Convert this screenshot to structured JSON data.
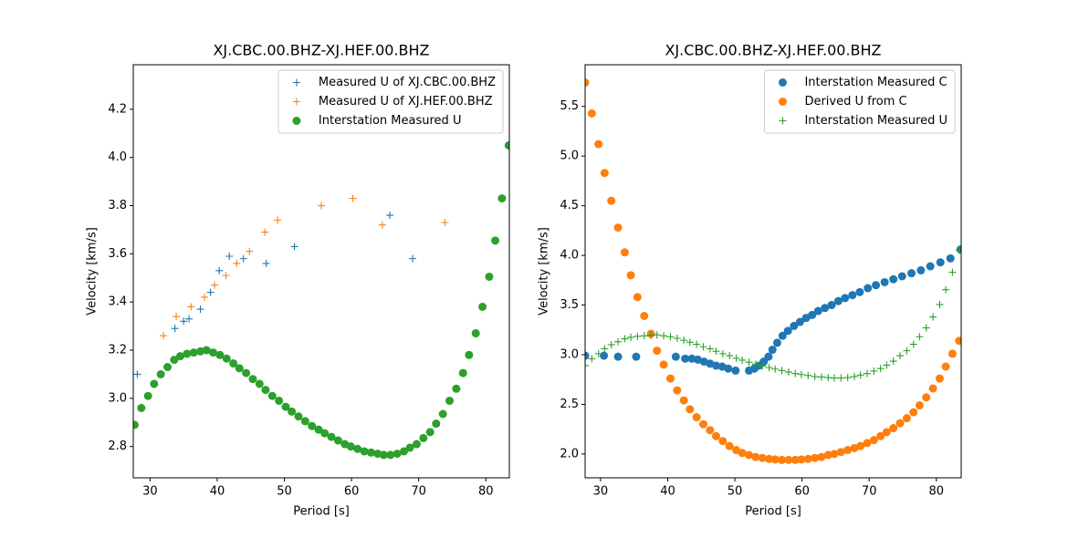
{
  "chart_data": [
    {
      "type": "scatter",
      "title": "XJ.CBC.00.BHZ-XJ.HEF.00.BHZ",
      "xlabel": "Period [s]",
      "ylabel": "Velocity [km/s]",
      "xlim": [
        27.5,
        83.5
      ],
      "ylim": [
        2.67,
        4.385
      ],
      "xticks": [
        30,
        40,
        50,
        60,
        70,
        80
      ],
      "yticks": [
        2.8,
        {
          "value": 3,
          "label": "3.0"
        },
        3.2,
        3.4,
        3.6,
        3.8,
        {
          "value": 4,
          "label": "4.0"
        },
        4.2
      ],
      "legend": "upper right",
      "series": [
        {
          "name": "Measured U of XJ.CBC.00.BHZ",
          "color": "#1f77b4",
          "marker": "+",
          "x": [
            28.1,
            33.7,
            35.0,
            35.8,
            37.5,
            39.0,
            40.3,
            41.8,
            43.9,
            47.3,
            51.5,
            65.7,
            69.1
          ],
          "values": [
            3.1,
            3.29,
            3.32,
            3.33,
            3.37,
            3.44,
            3.53,
            3.59,
            3.58,
            3.56,
            3.63,
            3.76,
            3.58
          ]
        },
        {
          "name": "Measured U of XJ.HEF.00.BHZ",
          "color": "#ff7f0e",
          "marker": "+",
          "x": [
            32.0,
            33.9,
            36.1,
            38.1,
            39.6,
            41.3,
            42.9,
            44.8,
            47.1,
            49.0,
            55.5,
            60.2,
            64.6,
            73.9
          ],
          "values": [
            3.26,
            3.34,
            3.38,
            3.42,
            3.47,
            3.51,
            3.56,
            3.61,
            3.69,
            3.74,
            3.8,
            3.83,
            3.72,
            3.73
          ]
        },
        {
          "name": "Interstation Measured U",
          "color": "#2ca02c",
          "marker": "o",
          "x": [
            27.7,
            28.7,
            29.7,
            30.6,
            31.6,
            32.6,
            33.6,
            34.5,
            35.5,
            36.5,
            37.5,
            38.4,
            39.4,
            40.4,
            41.4,
            42.4,
            43.3,
            44.3,
            45.3,
            46.3,
            47.2,
            48.2,
            49.2,
            50.2,
            51.1,
            52.1,
            53.1,
            54.1,
            55.1,
            56.0,
            57.0,
            58.0,
            59.0,
            59.9,
            60.9,
            61.9,
            62.9,
            63.9,
            64.8,
            65.8,
            66.8,
            67.8,
            68.7,
            69.7,
            70.7,
            71.7,
            72.6,
            73.6,
            74.6,
            75.6,
            76.6,
            77.5,
            78.5,
            79.5,
            80.5,
            81.4,
            82.4,
            83.4
          ],
          "values": [
            2.89,
            2.96,
            3.01,
            3.06,
            3.1,
            3.13,
            3.16,
            3.175,
            3.185,
            3.19,
            3.195,
            3.2,
            3.19,
            3.18,
            3.165,
            3.145,
            3.125,
            3.105,
            3.08,
            3.06,
            3.035,
            3.01,
            2.99,
            2.965,
            2.945,
            2.925,
            2.905,
            2.885,
            2.87,
            2.855,
            2.84,
            2.825,
            2.81,
            2.8,
            2.79,
            2.78,
            2.775,
            2.77,
            2.765,
            2.765,
            2.77,
            2.78,
            2.795,
            2.81,
            2.835,
            2.86,
            2.895,
            2.935,
            2.99,
            3.04,
            3.105,
            3.18,
            3.27,
            3.38,
            3.505,
            3.655,
            3.83,
            4.05
          ]
        }
      ]
    },
    {
      "type": "scatter",
      "title": "XJ.CBC.00.BHZ-XJ.HEF.00.BHZ",
      "xlabel": "Period [s]",
      "ylabel": "Velocity [km/s]",
      "xlim": [
        27.7,
        83.7
      ],
      "ylim": [
        1.76,
        5.92
      ],
      "xticks": [
        30,
        40,
        50,
        60,
        70,
        80
      ],
      "yticks": [
        {
          "value": 2,
          "label": "2.0"
        },
        2.5,
        {
          "value": 3,
          "label": "3.0"
        },
        3.5,
        {
          "value": 4,
          "label": "4.0"
        },
        4.5,
        {
          "value": 5,
          "label": "5.0"
        },
        5.5
      ],
      "legend": "upper right",
      "series": [
        {
          "name": "Interstation Measured C",
          "color": "#1f77b4",
          "marker": "o",
          "x": [
            27.7,
            30.5,
            32.6,
            35.3,
            41.2,
            42.6,
            43.6,
            44.5,
            45.4,
            46.3,
            47.2,
            48.1,
            49.0,
            50.1,
            52.1,
            52.9,
            53.6,
            54.3,
            55.0,
            55.6,
            56.3,
            57.1,
            57.9,
            58.8,
            59.7,
            60.6,
            61.5,
            62.4,
            63.4,
            64.4,
            65.4,
            66.4,
            67.5,
            68.6,
            69.8,
            71.0,
            72.3,
            73.6,
            74.9,
            76.3,
            77.7,
            79.1,
            80.6,
            82.1,
            83.6
          ],
          "values": [
            2.99,
            2.99,
            2.98,
            2.98,
            2.98,
            2.96,
            2.96,
            2.95,
            2.93,
            2.91,
            2.89,
            2.88,
            2.86,
            2.84,
            2.84,
            2.86,
            2.89,
            2.93,
            2.98,
            3.05,
            3.12,
            3.19,
            3.24,
            3.29,
            3.33,
            3.37,
            3.4,
            3.44,
            3.47,
            3.5,
            3.54,
            3.57,
            3.6,
            3.63,
            3.67,
            3.7,
            3.73,
            3.76,
            3.79,
            3.82,
            3.85,
            3.89,
            3.93,
            3.97,
            4.06
          ]
        },
        {
          "name": "Derived U from C",
          "color": "#ff7f0e",
          "marker": "o",
          "x": [
            27.7,
            28.7,
            29.7,
            30.6,
            31.6,
            32.6,
            33.6,
            34.5,
            35.5,
            36.5,
            37.5,
            38.4,
            39.4,
            40.4,
            41.4,
            42.4,
            43.3,
            44.3,
            45.3,
            46.3,
            47.2,
            48.2,
            49.2,
            50.2,
            51.1,
            52.1,
            53.1,
            54.1,
            55.1,
            56.0,
            57.0,
            58.0,
            59.0,
            59.9,
            60.9,
            61.9,
            62.9,
            63.9,
            64.8,
            65.8,
            66.8,
            67.8,
            68.7,
            69.7,
            70.7,
            71.7,
            72.6,
            73.6,
            74.6,
            75.6,
            76.6,
            77.5,
            78.5,
            79.5,
            80.5,
            81.4,
            82.4,
            83.4
          ],
          "values": [
            5.74,
            5.43,
            5.12,
            4.83,
            4.55,
            4.28,
            4.03,
            3.8,
            3.58,
            3.39,
            3.21,
            3.04,
            2.9,
            2.76,
            2.64,
            2.54,
            2.45,
            2.37,
            2.3,
            2.24,
            2.18,
            2.13,
            2.08,
            2.04,
            2.01,
            1.99,
            1.97,
            1.96,
            1.95,
            1.945,
            1.94,
            1.94,
            1.94,
            1.945,
            1.95,
            1.96,
            1.97,
            1.99,
            2.0,
            2.02,
            2.04,
            2.06,
            2.08,
            2.11,
            2.14,
            2.18,
            2.22,
            2.26,
            2.31,
            2.36,
            2.42,
            2.49,
            2.57,
            2.66,
            2.76,
            2.88,
            3.01,
            3.14
          ]
        },
        {
          "name": "Interstation Measured U",
          "color": "#2ca02c",
          "marker": "+",
          "x": [
            27.7,
            28.7,
            29.7,
            30.6,
            31.6,
            32.6,
            33.6,
            34.5,
            35.5,
            36.5,
            37.5,
            38.4,
            39.4,
            40.4,
            41.4,
            42.4,
            43.3,
            44.3,
            45.3,
            46.3,
            47.2,
            48.2,
            49.2,
            50.2,
            51.1,
            52.1,
            53.1,
            54.1,
            55.1,
            56.0,
            57.0,
            58.0,
            59.0,
            59.9,
            60.9,
            61.9,
            62.9,
            63.9,
            64.8,
            65.8,
            66.8,
            67.8,
            68.7,
            69.7,
            70.7,
            71.7,
            72.6,
            73.6,
            74.6,
            75.6,
            76.6,
            77.5,
            78.5,
            79.5,
            80.5,
            81.4,
            82.4,
            83.4
          ],
          "values": [
            2.89,
            2.96,
            3.01,
            3.06,
            3.1,
            3.13,
            3.16,
            3.175,
            3.185,
            3.19,
            3.195,
            3.2,
            3.19,
            3.18,
            3.165,
            3.145,
            3.125,
            3.105,
            3.08,
            3.06,
            3.035,
            3.01,
            2.99,
            2.965,
            2.945,
            2.925,
            2.905,
            2.885,
            2.87,
            2.855,
            2.84,
            2.825,
            2.81,
            2.8,
            2.79,
            2.78,
            2.775,
            2.77,
            2.765,
            2.765,
            2.77,
            2.78,
            2.795,
            2.81,
            2.835,
            2.86,
            2.895,
            2.935,
            2.99,
            3.04,
            3.105,
            3.18,
            3.27,
            3.38,
            3.505,
            3.655,
            3.83,
            4.05
          ]
        }
      ]
    }
  ]
}
